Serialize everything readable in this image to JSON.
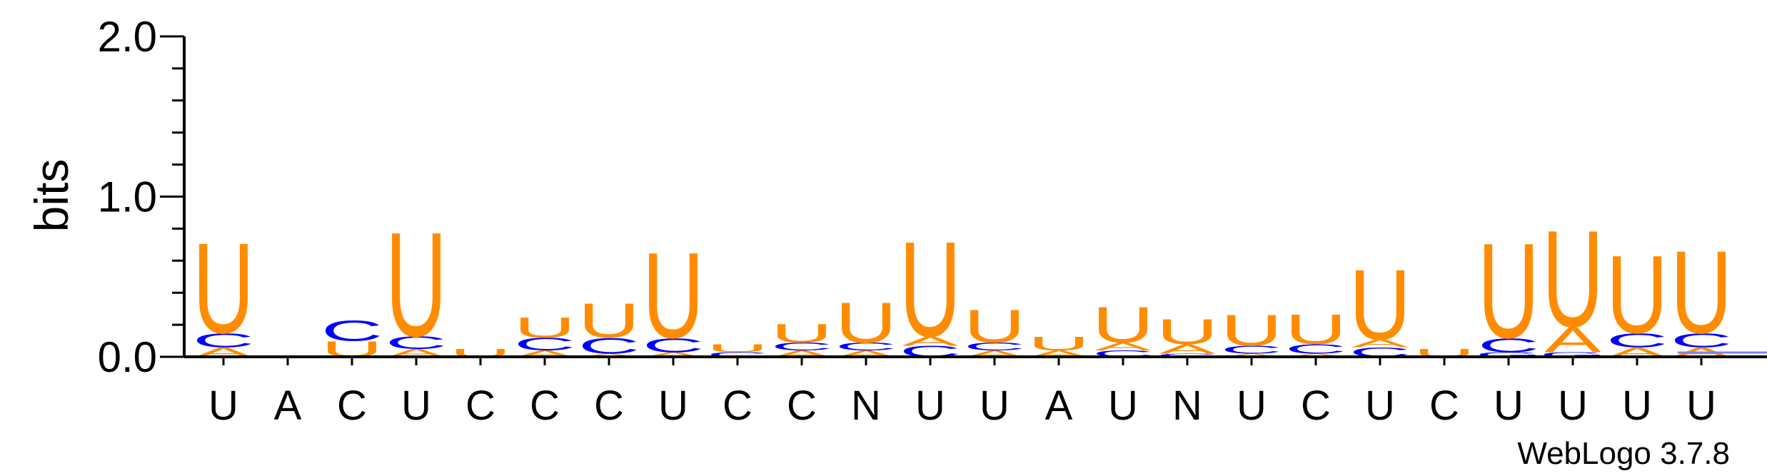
{
  "chart_data": {
    "type": "sequence-logo",
    "ylabel": "bits",
    "ylim": [
      0,
      2.0
    ],
    "yticks": [
      "0.0",
      "1.0",
      "2.0"
    ],
    "ytick_values": [
      0,
      1,
      2
    ],
    "credit": "WebLogo 3.7.8",
    "colors": {
      "U": "#ff8c00",
      "C": "#0000ff",
      "A": "#ff8c00",
      "G": "#0000ff"
    },
    "positions": [
      {
        "label": "U",
        "stack": [
          [
            "A",
            0.06
          ],
          [
            "C",
            0.09
          ],
          [
            "U",
            0.58
          ]
        ]
      },
      {
        "label": "A",
        "stack": []
      },
      {
        "label": "C",
        "stack": [
          [
            "U",
            0.1
          ],
          [
            "C",
            0.13
          ]
        ]
      },
      {
        "label": "U",
        "stack": [
          [
            "A",
            0.05
          ],
          [
            "C",
            0.08
          ],
          [
            "U",
            0.67
          ]
        ]
      },
      {
        "label": "C",
        "stack": [
          [
            "U",
            0.05
          ]
        ]
      },
      {
        "label": "C",
        "stack": [
          [
            "A",
            0.04
          ],
          [
            "C",
            0.08
          ],
          [
            "U",
            0.13
          ]
        ]
      },
      {
        "label": "C",
        "stack": [
          [
            "A",
            0.02
          ],
          [
            "C",
            0.1
          ],
          [
            "U",
            0.22
          ]
        ]
      },
      {
        "label": "U",
        "stack": [
          [
            "A",
            0.03
          ],
          [
            "C",
            0.09
          ],
          [
            "U",
            0.55
          ]
        ]
      },
      {
        "label": "C",
        "stack": [
          [
            "C",
            0.03
          ],
          [
            "U",
            0.05
          ]
        ]
      },
      {
        "label": "C",
        "stack": [
          [
            "A",
            0.04
          ],
          [
            "C",
            0.05
          ],
          [
            "U",
            0.12
          ]
        ]
      },
      {
        "label": "N",
        "stack": [
          [
            "A",
            0.04
          ],
          [
            "C",
            0.05
          ],
          [
            "U",
            0.26
          ]
        ]
      },
      {
        "label": "U",
        "stack": [
          [
            "C",
            0.07
          ],
          [
            "A",
            0.06
          ],
          [
            "U",
            0.61
          ]
        ]
      },
      {
        "label": "U",
        "stack": [
          [
            "A",
            0.04
          ],
          [
            "C",
            0.05
          ],
          [
            "U",
            0.21
          ]
        ]
      },
      {
        "label": "A",
        "stack": [
          [
            "A",
            0.04
          ],
          [
            "U",
            0.09
          ]
        ]
      },
      {
        "label": "U",
        "stack": [
          [
            "C",
            0.04
          ],
          [
            "A",
            0.05
          ],
          [
            "U",
            0.23
          ]
        ]
      },
      {
        "label": "N",
        "stack": [
          [
            "C",
            0.02
          ],
          [
            "A",
            0.06
          ],
          [
            "U",
            0.16
          ]
        ]
      },
      {
        "label": "U",
        "stack": [
          [
            "A",
            0.02
          ],
          [
            "C",
            0.05
          ],
          [
            "U",
            0.2
          ]
        ]
      },
      {
        "label": "C",
        "stack": [
          [
            "A",
            0.02
          ],
          [
            "C",
            0.06
          ],
          [
            "U",
            0.19
          ]
        ]
      },
      {
        "label": "U",
        "stack": [
          [
            "C",
            0.06
          ],
          [
            "A",
            0.05
          ],
          [
            "U",
            0.45
          ]
        ]
      },
      {
        "label": "C",
        "stack": [
          [
            "U",
            0.05
          ]
        ]
      },
      {
        "label": "U",
        "stack": [
          [
            "G",
            0.03
          ],
          [
            "C",
            0.09
          ],
          [
            "U",
            0.61
          ]
        ]
      },
      {
        "label": "U",
        "stack": [
          [
            "G",
            0.03
          ],
          [
            "A",
            0.16
          ],
          [
            "U",
            0.62
          ]
        ]
      },
      {
        "label": "U",
        "stack": [
          [
            "A",
            0.06
          ],
          [
            "C",
            0.09
          ],
          [
            "U",
            0.5
          ]
        ]
      },
      {
        "label": "U",
        "stack": [
          [
            "A",
            0.06
          ],
          [
            "C",
            0.09
          ],
          [
            "U",
            0.53
          ]
        ]
      }
    ]
  }
}
